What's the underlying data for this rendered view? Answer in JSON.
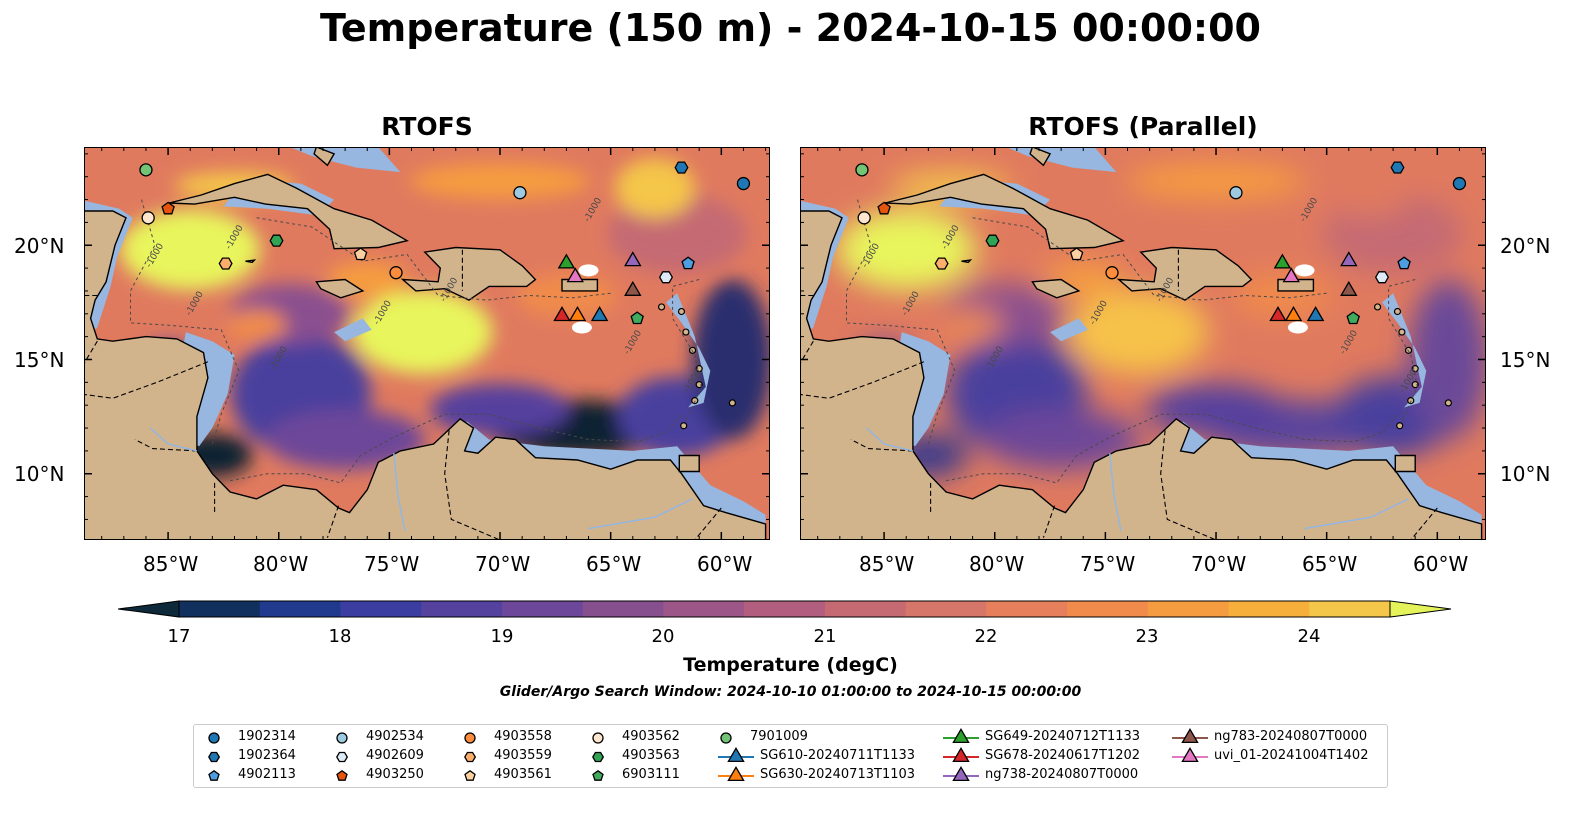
{
  "title": "Temperature (150 m) - 2024-10-15 00:00:00",
  "panels": [
    {
      "title": "RTOFS"
    },
    {
      "title": "RTOFS (Parallel)"
    }
  ],
  "axes": {
    "lon_ticks": [
      "85°W",
      "80°W",
      "75°W",
      "70°W",
      "65°W",
      "60°W"
    ],
    "lat_ticks": [
      "20°N",
      "15°N",
      "10°N"
    ]
  },
  "colorbar": {
    "label": "Temperature (degC)",
    "ticks": [
      "17",
      "18",
      "19",
      "20",
      "21",
      "22",
      "23",
      "24"
    ],
    "colors": [
      "#0e2a3a",
      "#12305d",
      "#223a8e",
      "#3b3da1",
      "#55419e",
      "#6d4799",
      "#86508f",
      "#9c5788",
      "#b25f7f",
      "#c56a73",
      "#d6756a",
      "#e67f5b",
      "#f08b4c",
      "#f59c40",
      "#f6af3a",
      "#f4c64a",
      "#e4f35a"
    ]
  },
  "contour_label": "-1000",
  "search_window": "Glider/Argo Search Window: 2024-10-10 01:00:00 to 2024-10-15 00:00:00",
  "legend": [
    {
      "label": "1902314",
      "marker": "circle",
      "color": "#1f77b4"
    },
    {
      "label": "1902364",
      "marker": "hexagon",
      "color": "#1f77b4"
    },
    {
      "label": "4902113",
      "marker": "pentagon",
      "color": "#4e9de0"
    },
    {
      "label": "4902534",
      "marker": "circle",
      "color": "#9ecae1"
    },
    {
      "label": "4902609",
      "marker": "hexagon",
      "color": "#deebf7"
    },
    {
      "label": "4903250",
      "marker": "pentagon",
      "color": "#e6550d"
    },
    {
      "label": "4903558",
      "marker": "circle",
      "color": "#fd8d3c"
    },
    {
      "label": "4903559",
      "marker": "hexagon",
      "color": "#fdae6b"
    },
    {
      "label": "4903561",
      "marker": "pentagon",
      "color": "#fdd0a2"
    },
    {
      "label": "4903562",
      "marker": "circle",
      "color": "#fee6ce"
    },
    {
      "label": "4903563",
      "marker": "hexagon",
      "color": "#31a354"
    },
    {
      "label": "6903111",
      "marker": "pentagon",
      "color": "#41ab5d"
    },
    {
      "label": "7901009",
      "marker": "circle",
      "color": "#74c476"
    },
    {
      "label": "SG610-20240711T1133",
      "marker": "triangle",
      "color": "#1f77b4"
    },
    {
      "label": "SG630-20240713T1103",
      "marker": "triangle",
      "color": "#ff7f0e"
    },
    {
      "label": "SG649-20240712T1133",
      "marker": "triangle",
      "color": "#2ca02c"
    },
    {
      "label": "SG678-20240617T1202",
      "marker": "triangle",
      "color": "#d62728"
    },
    {
      "label": "ng738-20240807T0000",
      "marker": "triangle",
      "color": "#9467bd"
    },
    {
      "label": "ng783-20240807T0000",
      "marker": "triangle",
      "color": "#8c564b"
    },
    {
      "label": "uvi_01-20241004T1402",
      "marker": "triangle",
      "color": "#e377c2"
    }
  ],
  "map_colors": {
    "land": "#d2b48c",
    "shelf": "#97b6e0",
    "deep_cold": "#0b2230",
    "warm_core": "#e8f55c",
    "background": "#e07a5f"
  },
  "stations": [
    {
      "id": "7901009",
      "lon": -86.0,
      "lat": 23.3
    },
    {
      "id": "4903562",
      "lon": -85.9,
      "lat": 21.2
    },
    {
      "id": "4903250",
      "lon": -85.0,
      "lat": 21.6
    },
    {
      "id": "4903559",
      "lon": -82.4,
      "lat": 19.2
    },
    {
      "id": "4903563",
      "lon": -80.1,
      "lat": 20.2
    },
    {
      "id": "4903561",
      "lon": -76.3,
      "lat": 19.6
    },
    {
      "id": "4903558",
      "lon": -74.7,
      "lat": 18.8
    },
    {
      "id": "4902534",
      "lon": -69.1,
      "lat": 22.3
    },
    {
      "id": "1902364",
      "lon": -61.8,
      "lat": 23.4
    },
    {
      "id": "1902314",
      "lon": -59.0,
      "lat": 22.7
    },
    {
      "id": "4902609",
      "lon": -62.5,
      "lat": 18.6
    },
    {
      "id": "4902113",
      "lon": -61.5,
      "lat": 19.2
    },
    {
      "id": "6903111",
      "lon": -63.8,
      "lat": 16.8
    },
    {
      "id": "SG649-20240712T1133",
      "lon": -67.0,
      "lat": 19.2
    },
    {
      "id": "ng738-20240807T0000",
      "lon": -64.0,
      "lat": 19.3
    },
    {
      "id": "uvi_01-20241004T1402",
      "lon": -66.6,
      "lat": 18.6
    },
    {
      "id": "ng783-20240807T0000",
      "lon": -64.0,
      "lat": 18.0
    },
    {
      "id": "SG678-20240617T1202",
      "lon": -67.2,
      "lat": 16.9
    },
    {
      "id": "SG630-20240713T1103",
      "lon": -66.5,
      "lat": 16.9
    },
    {
      "id": "SG610-20240711T1133",
      "lon": -65.5,
      "lat": 16.9
    }
  ]
}
